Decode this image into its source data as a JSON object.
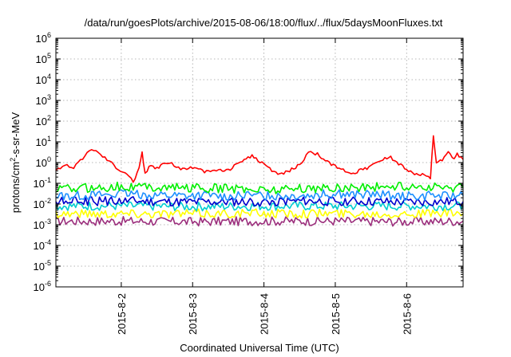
{
  "chart_data": {
    "type": "line",
    "title": "/data/run/goesPlots/archive/2015-08-06/18:00/flux/../flux/5daysMoonFluxes.txt",
    "xlabel": "Coordinated Universal Time (UTC)",
    "ylabel": {
      "base": "protons/cm",
      "sup": "2",
      "rest": "-s-sr-MeV"
    },
    "yscale": "log",
    "ylim_exponents": [
      -6,
      6
    ],
    "xlim": [
      "2015-08-01T02:00",
      "2015-08-06T19:00"
    ],
    "grid": true,
    "y_ticks": [
      {
        "base": "10",
        "exp": "-6"
      },
      {
        "base": "10",
        "exp": "-5"
      },
      {
        "base": "10",
        "exp": "-4"
      },
      {
        "base": "10",
        "exp": "-3"
      },
      {
        "base": "10",
        "exp": "-2"
      },
      {
        "base": "10",
        "exp": "-1"
      },
      {
        "base": "10",
        "exp": "0"
      },
      {
        "base": "10",
        "exp": "1"
      },
      {
        "base": "10",
        "exp": "2"
      },
      {
        "base": "10",
        "exp": "3"
      },
      {
        "base": "10",
        "exp": "4"
      },
      {
        "base": "10",
        "exp": "5"
      },
      {
        "base": "10",
        "exp": "6"
      }
    ],
    "x_ticks": [
      {
        "label": "2015-8-2",
        "t": "2015-08-02T00:00"
      },
      {
        "label": "2015-8-3",
        "t": "2015-08-03T00:00"
      },
      {
        "label": "2015-8-4",
        "t": "2015-08-04T00:00"
      },
      {
        "label": "2015-8-5",
        "t": "2015-08-05T00:00"
      },
      {
        "label": "2015-8-6",
        "t": "2015-08-06T00:00"
      }
    ],
    "series": [
      {
        "color": "#ff0000",
        "points": [
          [
            "2015-08-01T02:00",
            0.5
          ],
          [
            "2015-08-01T05:00",
            0.7
          ],
          [
            "2015-08-01T08:00",
            0.6
          ],
          [
            "2015-08-01T11:00",
            1.5
          ],
          [
            "2015-08-01T14:00",
            5.0
          ],
          [
            "2015-08-01T17:00",
            2.5
          ],
          [
            "2015-08-01T20:00",
            1.2
          ],
          [
            "2015-08-01T23:00",
            0.5
          ],
          [
            "2015-08-02T02:00",
            0.3
          ],
          [
            "2015-08-02T04:00",
            0.12
          ],
          [
            "2015-08-02T06:00",
            0.5
          ],
          [
            "2015-08-02T07:00",
            3.0
          ],
          [
            "2015-08-02T08:00",
            0.3
          ],
          [
            "2015-08-02T10:00",
            0.8
          ],
          [
            "2015-08-02T12:00",
            0.5
          ],
          [
            "2015-08-02T14:00",
            1.0
          ],
          [
            "2015-08-02T17:00",
            0.9
          ],
          [
            "2015-08-02T20:00",
            0.5
          ],
          [
            "2015-08-03T00:00",
            0.6
          ],
          [
            "2015-08-03T04:00",
            0.35
          ],
          [
            "2015-08-03T08:00",
            0.45
          ],
          [
            "2015-08-03T12:00",
            0.4
          ],
          [
            "2015-08-03T16:00",
            1.2
          ],
          [
            "2015-08-03T20:00",
            2.0
          ],
          [
            "2015-08-04T00:00",
            0.8
          ],
          [
            "2015-08-04T04:00",
            0.3
          ],
          [
            "2015-08-04T08:00",
            0.35
          ],
          [
            "2015-08-04T12:00",
            0.8
          ],
          [
            "2015-08-04T15:00",
            3.0
          ],
          [
            "2015-08-04T18:00",
            2.5
          ],
          [
            "2015-08-04T22:00",
            0.9
          ],
          [
            "2015-08-05T02:00",
            0.5
          ],
          [
            "2015-08-05T06:00",
            0.3
          ],
          [
            "2015-08-05T10:00",
            0.5
          ],
          [
            "2015-08-05T14:00",
            1.0
          ],
          [
            "2015-08-05T18:00",
            2.0
          ],
          [
            "2015-08-05T22:00",
            0.8
          ],
          [
            "2015-08-06T02:00",
            0.3
          ],
          [
            "2015-08-06T06:00",
            0.25
          ],
          [
            "2015-08-06T08:00",
            0.15
          ],
          [
            "2015-08-06T09:00",
            20.0
          ],
          [
            "2015-08-06T10:00",
            1.0
          ],
          [
            "2015-08-06T12:00",
            1.2
          ],
          [
            "2015-08-06T14:00",
            3.0
          ],
          [
            "2015-08-06T16:00",
            1.5
          ],
          [
            "2015-08-06T17:00",
            2.5
          ],
          [
            "2015-08-06T19:00",
            1.4
          ]
        ]
      },
      {
        "color": "#00ee00",
        "points": [
          [
            "2015-08-01T02:00",
            0.05
          ],
          [
            "2015-08-02T00:00",
            0.07
          ],
          [
            "2015-08-03T00:00",
            0.06
          ],
          [
            "2015-08-04T00:00",
            0.05
          ],
          [
            "2015-08-05T00:00",
            0.06
          ],
          [
            "2015-08-06T00:00",
            0.07
          ],
          [
            "2015-08-06T19:00",
            0.06
          ]
        ]
      },
      {
        "color": "#1e90ff",
        "points": [
          [
            "2015-08-01T02:00",
            0.025
          ],
          [
            "2015-08-02T00:00",
            0.03
          ],
          [
            "2015-08-03T00:00",
            0.025
          ],
          [
            "2015-08-04T00:00",
            0.025
          ],
          [
            "2015-08-05T00:00",
            0.03
          ],
          [
            "2015-08-06T00:00",
            0.025
          ],
          [
            "2015-08-06T19:00",
            0.025
          ]
        ]
      },
      {
        "color": "#0000cd",
        "points": [
          [
            "2015-08-01T02:00",
            0.013
          ],
          [
            "2015-08-02T00:00",
            0.014
          ],
          [
            "2015-08-03T00:00",
            0.012
          ],
          [
            "2015-08-04T00:00",
            0.013
          ],
          [
            "2015-08-05T00:00",
            0.014
          ],
          [
            "2015-08-06T00:00",
            0.012
          ],
          [
            "2015-08-06T19:00",
            0.013
          ]
        ]
      },
      {
        "color": "#00ced1",
        "points": [
          [
            "2015-08-01T02:00",
            0.008
          ],
          [
            "2015-08-02T00:00",
            0.008
          ],
          [
            "2015-08-03T00:00",
            0.0075
          ],
          [
            "2015-08-04T00:00",
            0.008
          ],
          [
            "2015-08-05T00:00",
            0.008
          ],
          [
            "2015-08-06T00:00",
            0.008
          ],
          [
            "2015-08-06T19:00",
            0.008
          ]
        ]
      },
      {
        "color": "#ffff00",
        "points": [
          [
            "2015-08-01T02:00",
            0.0035
          ],
          [
            "2015-08-02T00:00",
            0.0035
          ],
          [
            "2015-08-03T00:00",
            0.0034
          ],
          [
            "2015-08-04T00:00",
            0.0035
          ],
          [
            "2015-08-05T00:00",
            0.0035
          ],
          [
            "2015-08-06T00:00",
            0.0034
          ],
          [
            "2015-08-06T19:00",
            0.0035
          ]
        ]
      },
      {
        "color": "#9b2e7c",
        "points": [
          [
            "2015-08-01T02:00",
            0.0015
          ],
          [
            "2015-08-02T00:00",
            0.0015
          ],
          [
            "2015-08-03T00:00",
            0.0014
          ],
          [
            "2015-08-04T00:00",
            0.0015
          ],
          [
            "2015-08-05T00:00",
            0.0015
          ],
          [
            "2015-08-06T00:00",
            0.0014
          ],
          [
            "2015-08-06T19:00",
            0.0015
          ]
        ]
      }
    ]
  }
}
